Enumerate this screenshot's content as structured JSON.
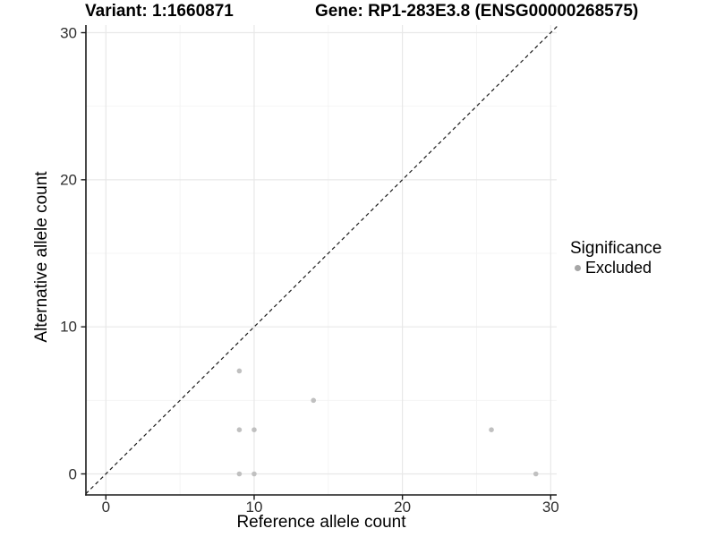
{
  "chart_data": {
    "type": "scatter",
    "title_left": "Variant: 1:1660871",
    "title_right": "Gene: RP1-283E3.8 (ENSG00000268575)",
    "xlabel": "Reference allele count",
    "ylabel": "Alternative allele count",
    "xlim": [
      -1.35,
      30.45
    ],
    "ylim": [
      -1.4,
      30.5
    ],
    "x_ticks": [
      0,
      10,
      20,
      30
    ],
    "y_ticks": [
      0,
      10,
      20,
      30
    ],
    "x_minor_gridlines": [
      5,
      15,
      25
    ],
    "y_minor_gridlines": [
      5,
      15,
      25
    ],
    "grid": true,
    "legend": {
      "title": "Significance",
      "position": "right",
      "entries": [
        {
          "label": "Excluded",
          "color": "#a6a6a6"
        }
      ]
    },
    "series": [
      {
        "name": "Excluded",
        "color": "#c0c0c0",
        "points": [
          [
            9,
            7
          ],
          [
            14,
            5
          ],
          [
            9,
            3
          ],
          [
            10,
            3
          ],
          [
            26,
            3
          ],
          [
            9,
            0
          ],
          [
            10,
            0
          ],
          [
            29,
            0
          ]
        ]
      }
    ],
    "identity_line": {
      "style": "dashed",
      "color": "#1a1a1a",
      "from": [
        -1.35,
        -1.35
      ],
      "to": [
        30.45,
        30.45
      ]
    }
  },
  "colors": {
    "background": "#ffffff",
    "grid_major": "#e8e8e8",
    "grid_minor": "#f4f4f4",
    "axis_line": "#1a1a1a",
    "tick_text": "#303030",
    "title_text": "#000000"
  }
}
